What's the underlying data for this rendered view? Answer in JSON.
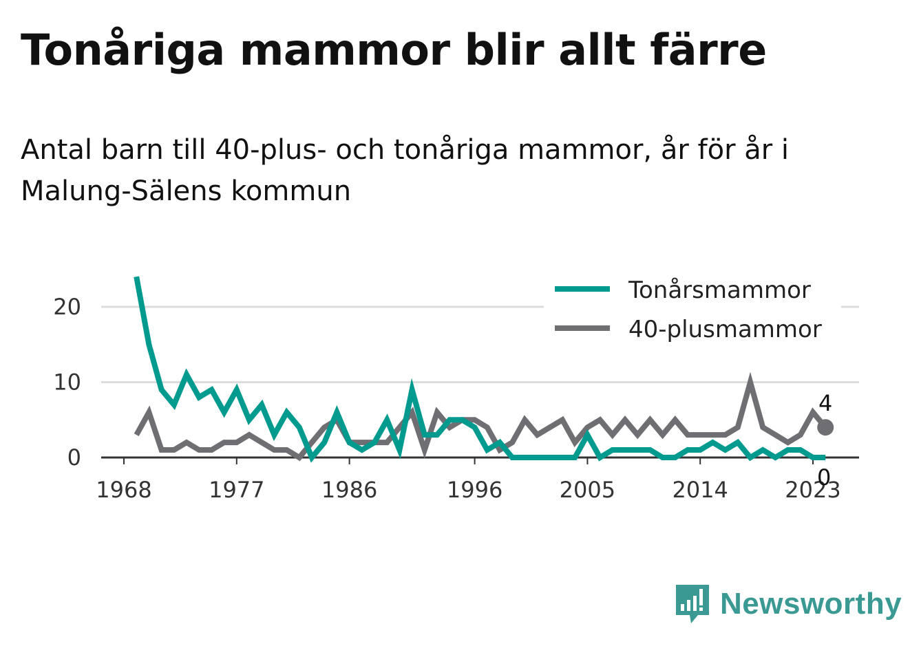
{
  "title": "Tonåriga mammor blir allt färre",
  "subtitle": "Antal barn till 40-plus- och tonåriga mammor, år för år i Malung-Sälens kommun",
  "brand": "Newsworthy",
  "chart_data": {
    "type": "line",
    "x": [
      1969,
      1970,
      1971,
      1972,
      1973,
      1974,
      1975,
      1976,
      1977,
      1978,
      1979,
      1980,
      1981,
      1982,
      1983,
      1984,
      1985,
      1986,
      1987,
      1988,
      1989,
      1990,
      1991,
      1992,
      1993,
      1994,
      1995,
      1996,
      1997,
      1998,
      1999,
      2000,
      2001,
      2002,
      2003,
      2004,
      2005,
      2006,
      2007,
      2008,
      2009,
      2010,
      2011,
      2012,
      2013,
      2014,
      2015,
      2016,
      2017,
      2018,
      2019,
      2020,
      2021,
      2022,
      2023,
      2024
    ],
    "series": [
      {
        "name": "Tonårsmammor",
        "color": "#009b8e",
        "values": [
          24,
          15,
          9,
          7,
          11,
          8,
          9,
          6,
          9,
          5,
          7,
          3,
          6,
          4,
          0,
          2,
          6,
          2,
          1,
          2,
          5,
          1,
          9,
          3,
          3,
          5,
          5,
          4,
          1,
          2,
          0,
          0,
          0,
          0,
          0,
          0,
          3,
          0,
          1,
          1,
          1,
          1,
          0,
          0,
          1,
          1,
          2,
          1,
          2,
          0,
          1,
          0,
          1,
          1,
          0,
          0
        ]
      },
      {
        "name": "40-plusmammor",
        "color": "#6e6e73",
        "values": [
          3,
          6,
          1,
          1,
          2,
          1,
          1,
          2,
          2,
          3,
          2,
          1,
          1,
          0,
          2,
          4,
          5,
          2,
          2,
          2,
          2,
          4,
          6,
          1,
          6,
          4,
          5,
          5,
          4,
          1,
          2,
          5,
          3,
          4,
          5,
          2,
          4,
          5,
          3,
          5,
          3,
          5,
          3,
          5,
          3,
          3,
          3,
          3,
          4,
          10,
          4,
          3,
          2,
          3,
          6,
          4
        ]
      }
    ],
    "xticks": [
      "1968",
      "1977",
      "1986",
      "1996",
      "2005",
      "2014",
      "2023"
    ],
    "xtick_values": [
      1968,
      1977,
      1986,
      1996,
      2005,
      2014,
      2023
    ],
    "yticks": [
      "0",
      "10",
      "20"
    ],
    "ytick_values": [
      0,
      10,
      20
    ],
    "xlim": [
      1968,
      2025
    ],
    "ylim": [
      0,
      24
    ],
    "grid": true,
    "legend_position": "top-right",
    "end_labels": [
      "4",
      "0"
    ]
  }
}
